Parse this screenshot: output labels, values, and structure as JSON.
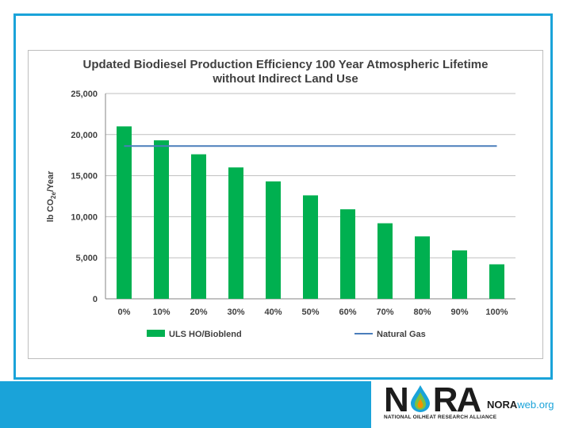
{
  "chart_data": {
    "type": "bar",
    "title_lines": [
      "Updated Biodiesel Production Efficiency 100 Year Atmospheric Lifetime",
      "without Indirect Land Use"
    ],
    "ylabel": "lb CO2e/Year",
    "ylabel_parts": {
      "pre": "lb CO",
      "sub": "2e",
      "post": "/Year"
    },
    "ylim": [
      0,
      25000
    ],
    "yticks": [
      0,
      5000,
      10000,
      15000,
      20000,
      25000
    ],
    "ytick_labels": [
      "0",
      "5,000",
      "10,000",
      "15,000",
      "20,000",
      "25,000"
    ],
    "grid": true,
    "categories": [
      "0%",
      "10%",
      "20%",
      "30%",
      "40%",
      "50%",
      "60%",
      "70%",
      "80%",
      "90%",
      "100%"
    ],
    "series": [
      {
        "name": "ULS HO/Bioblend",
        "kind": "bar",
        "color": "#00b050",
        "values": [
          21000,
          19300,
          17600,
          16000,
          14300,
          12600,
          10900,
          9200,
          7600,
          5900,
          4200
        ]
      },
      {
        "name": "Natural Gas",
        "kind": "line",
        "color": "#4a7ebb",
        "values": [
          18600,
          18600,
          18600,
          18600,
          18600,
          18600,
          18600,
          18600,
          18600,
          18600,
          18600
        ]
      }
    ],
    "legend_position": "bottom"
  },
  "logo": {
    "word_start": "N",
    "word_end": "RA",
    "site_bold": "NORA",
    "site_light": "web.org",
    "tagline": "NATIONAL OILHEAT RESEARCH ALLIANCE",
    "colors": {
      "drop_blue": "#1aa3d9",
      "drop_green": "#7ac143",
      "drop_orange": "#f39200"
    }
  },
  "colors": {
    "frame": "#1aa3d9",
    "band": "#1aa3d9"
  }
}
